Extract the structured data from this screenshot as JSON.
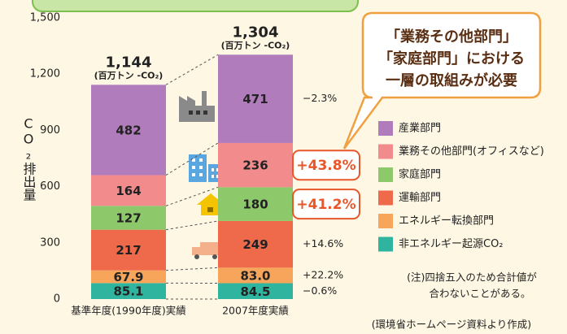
{
  "chart_data": {
    "type": "stacked-bar",
    "ylabel": "CO₂排出量",
    "categories": [
      "基準年度(1990年度)実績",
      "2007年度実績"
    ],
    "ylim": [
      0,
      1500
    ],
    "yticks": [
      0,
      300,
      600,
      900,
      {
        "value": 1200,
        "label": "1,200"
      },
      {
        "value": 1500,
        "label": "1,500"
      }
    ],
    "totals": [
      {
        "value": 1144,
        "label": "1,144"
      },
      {
        "value": 1304,
        "label": "1,304"
      }
    ],
    "total_unit": "(百万トン -CO₂)",
    "series": [
      {
        "name": "非エネルギー起源CO₂",
        "color": "#2fb59f",
        "values": [
          85.1,
          84.5
        ],
        "value_labels": [
          "85.1",
          "84.5"
        ],
        "change": {
          "value": -0.6,
          "label": "−0.6%"
        },
        "highlight": false
      },
      {
        "name": "エネルギー転換部門",
        "color": "#f6a55b",
        "values": [
          67.9,
          83.0
        ],
        "value_labels": [
          "67.9",
          "83.0"
        ],
        "change": {
          "value": 22.2,
          "label": "+22.2%"
        },
        "highlight": false
      },
      {
        "name": "運輸部門",
        "color": "#ee6a4b",
        "values": [
          217,
          249
        ],
        "value_labels": [
          "217",
          "249"
        ],
        "change": {
          "value": 14.6,
          "label": "+14.6%"
        },
        "highlight": false
      },
      {
        "name": "家庭部門",
        "color": "#8dc96b",
        "values": [
          127,
          180
        ],
        "value_labels": [
          "127",
          "180"
        ],
        "change": {
          "value": 41.2,
          "label": "+41.2%"
        },
        "highlight": true
      },
      {
        "name": "業務その他部門(オフィスなど)",
        "color": "#f28b8b",
        "values": [
          164,
          236
        ],
        "value_labels": [
          "164",
          "236"
        ],
        "change": {
          "value": 43.8,
          "label": "+43.8%"
        },
        "highlight": true
      },
      {
        "name": "産業部門",
        "color": "#b07cbc",
        "values": [
          482,
          471
        ],
        "value_labels": [
          "482",
          "471"
        ],
        "change": {
          "value": -2.3,
          "label": "−2.3%"
        },
        "highlight": false
      }
    ],
    "callout": [
      "「業務その他部門」",
      "「家庭部門」における",
      "一層の取組みが必要"
    ],
    "notes": [
      "(注)四捨五入のため合計値が",
      "合わないことがある。"
    ],
    "source": "(環境省ホームページ資料より作成)"
  }
}
